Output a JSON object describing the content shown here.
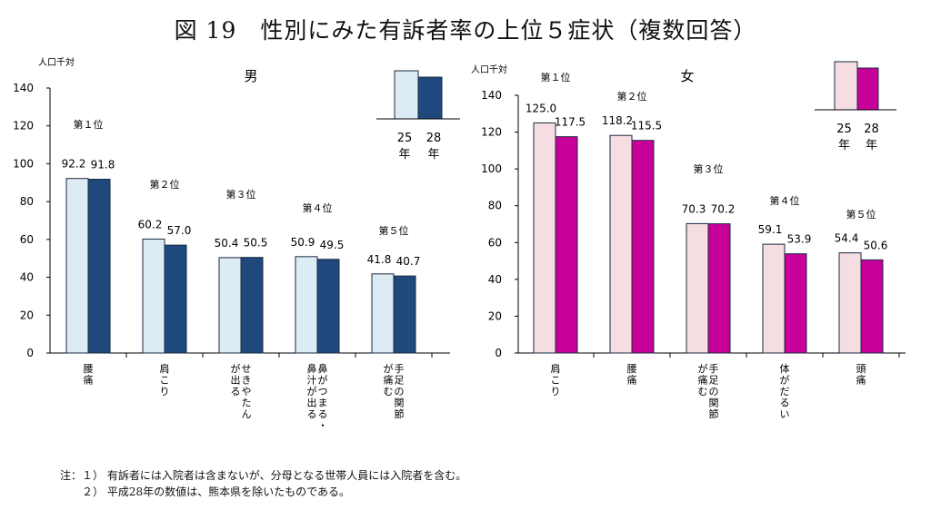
{
  "figure_title": "図 19　性別にみた有訴者率の上位５症状（複数回答）",
  "notes": [
    "注：１） 有訴者には入院者は含まないが、分母となる世帯人員には入院者を含む。",
    "　　２） 平成28年の数値は、熊本県を除いたものである。"
  ],
  "chart_data": [
    {
      "type": "bar",
      "title": "男",
      "ylabel": "人口千対",
      "ylim": [
        0,
        140
      ],
      "yticks": [
        0,
        20,
        40,
        60,
        80,
        100,
        120,
        140
      ],
      "grid": false,
      "legend_placement": "top-right",
      "categories": [
        "腰痛",
        "肩こり",
        "せきやたん が出る",
        "鼻がつまる・ 鼻汁が出る",
        "手足の関節 が痛む"
      ],
      "category_vertical_columns": [
        [
          "腰痛"
        ],
        [
          "肩こり"
        ],
        [
          "せきやたん",
          "が出る"
        ],
        [
          "鼻がつまる・",
          "鼻汁が出る"
        ],
        [
          "手足の関節",
          "が痛む"
        ]
      ],
      "ranks": [
        "第１位",
        "第２位",
        "第３位",
        "第４位",
        "第５位"
      ],
      "series": [
        {
          "name": "25 年",
          "color": "#dcebf4",
          "values": [
            92.2,
            60.2,
            50.4,
            50.9,
            41.8
          ]
        },
        {
          "name": "28 年",
          "color": "#1f497d",
          "values": [
            91.8,
            57.0,
            50.5,
            49.5,
            40.7
          ]
        }
      ],
      "legend_year_labels": [
        [
          "25",
          "年"
        ],
        [
          "28",
          "年"
        ]
      ],
      "data_labels": [
        [
          "92.2",
          "60.2",
          "50.4",
          "50.9",
          "41.8"
        ],
        [
          "91.8",
          "57.0",
          "50.5",
          "49.5",
          "40.7"
        ]
      ]
    },
    {
      "type": "bar",
      "title": "女",
      "ylabel": "人口千対",
      "ylim": [
        0,
        140
      ],
      "yticks": [
        0,
        20,
        40,
        60,
        80,
        100,
        120,
        140
      ],
      "grid": false,
      "legend_placement": "top-right",
      "categories": [
        "肩こり",
        "腰痛",
        "手足の関節 が痛む",
        "体がだるい",
        "頭痛"
      ],
      "category_vertical_columns": [
        [
          "肩こり"
        ],
        [
          "腰痛"
        ],
        [
          "手足の関節",
          "が痛む"
        ],
        [
          "体がだるい"
        ],
        [
          "頭痛"
        ]
      ],
      "ranks": [
        "第１位",
        "第２位",
        "第３位",
        "第４位",
        "第５位"
      ],
      "series": [
        {
          "name": "25 年",
          "color": "#f5dde2",
          "values": [
            125.0,
            118.2,
            70.3,
            59.1,
            54.4
          ]
        },
        {
          "name": "28 年",
          "color": "#c8009a",
          "values": [
            117.5,
            115.5,
            70.2,
            53.9,
            50.6
          ]
        }
      ],
      "legend_year_labels": [
        [
          "25",
          "年"
        ],
        [
          "28",
          "年"
        ]
      ],
      "data_labels": [
        [
          "125.0",
          "118.2",
          "70.3",
          "59.1",
          "54.4"
        ],
        [
          "117.5",
          "115.5",
          "70.2",
          "53.9",
          "50.6"
        ]
      ]
    }
  ]
}
